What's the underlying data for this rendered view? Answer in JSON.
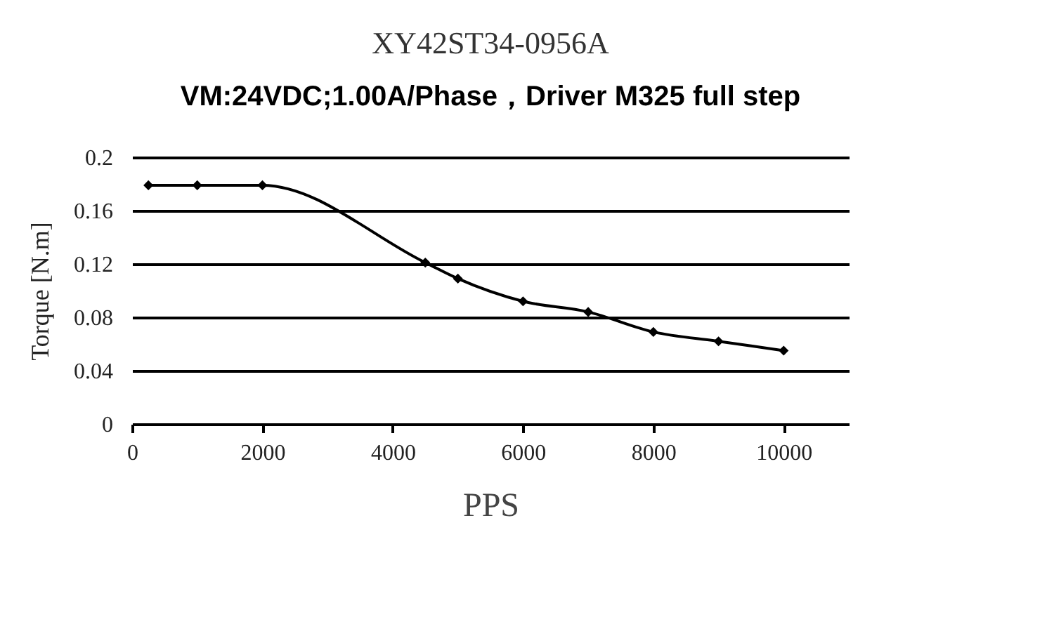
{
  "chart_data": {
    "type": "line",
    "title": "XY42ST34-0956A",
    "subtitle": "VM:24VDC;1.00A/Phase，Driver M325 full step",
    "xlabel": "PPS",
    "ylabel": "Torque [N.m]",
    "x": [
      250,
      1000,
      2000,
      4500,
      5000,
      6000,
      7000,
      8000,
      9000,
      10000
    ],
    "series": [
      {
        "color": "#000000",
        "values": [
          0.179,
          0.179,
          0.179,
          0.121,
          0.109,
          0.092,
          0.084,
          0.069,
          0.062,
          0.055
        ]
      }
    ],
    "xlim": [
      0,
      11000
    ],
    "xticks": [
      0,
      2000,
      4000,
      6000,
      8000,
      10000
    ],
    "ylim": [
      0,
      0.2
    ],
    "yticks": [
      0,
      0.04,
      0.08,
      0.12,
      0.16,
      0.2
    ],
    "grid": "y",
    "marker": "diamond",
    "line_style": "solid"
  }
}
